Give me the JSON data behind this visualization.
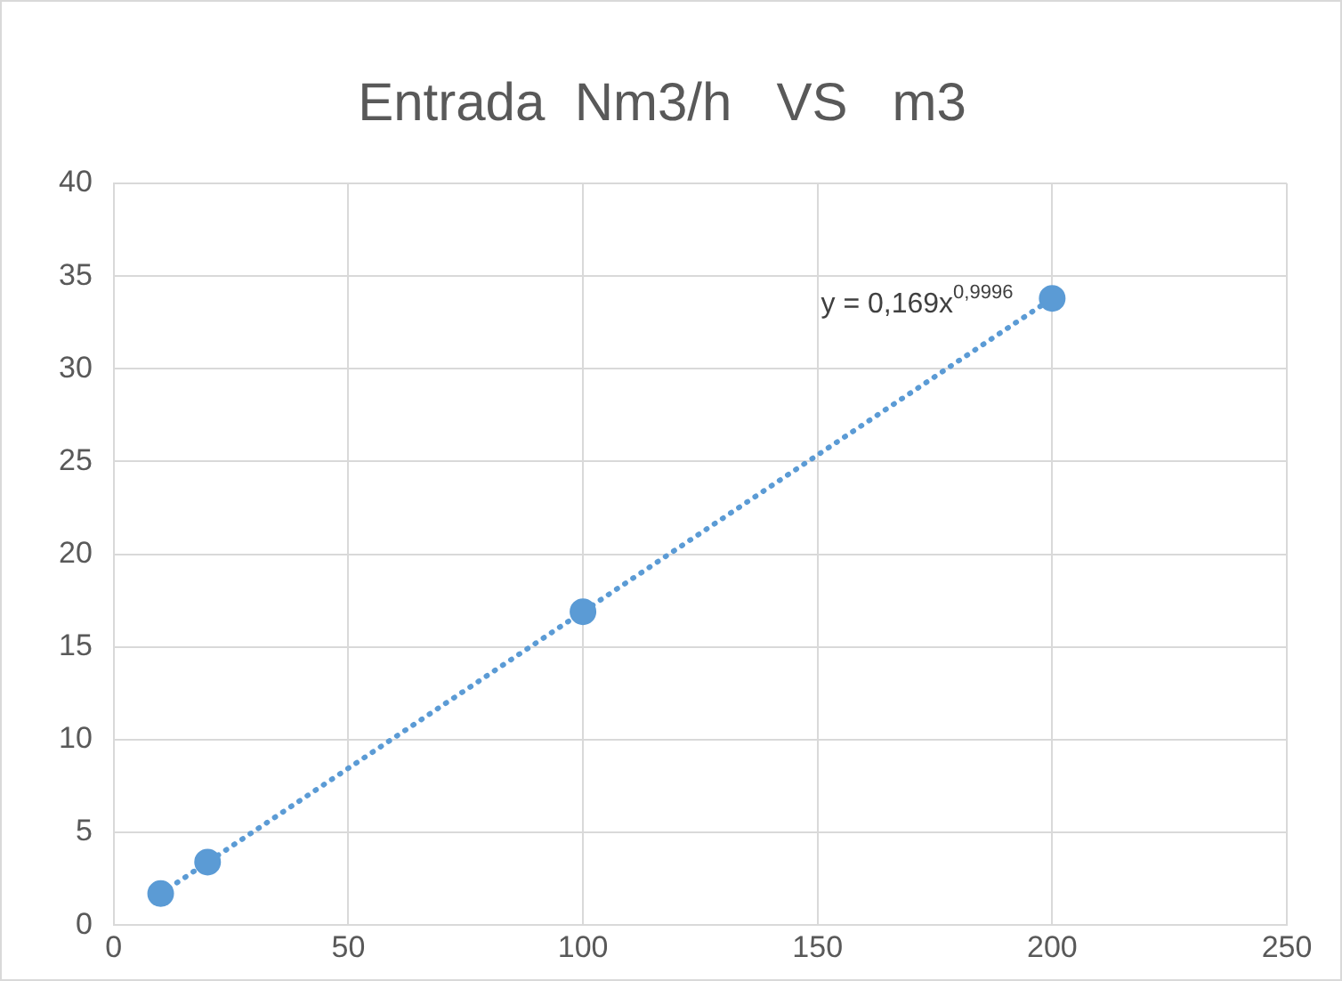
{
  "chart_data": {
    "type": "scatter",
    "title": "Entrada  Nm3/h   VS   m3",
    "x": [
      10,
      20,
      100,
      200
    ],
    "series": [
      {
        "color": "#5b9bd5",
        "values": [
          1.7,
          3.4,
          16.9,
          33.8
        ]
      },
      {
        "type": "line",
        "color": "#5b9bd5",
        "x": [
          10,
          200
        ],
        "values": [
          1.7,
          33.8
        ],
        "line_style": "dotted",
        "marker": "none"
      }
    ],
    "annotations": [
      {
        "text": "y = 0,169x$^{0,9996}$",
        "x": 200,
        "y": 33.8
      }
    ],
    "xlim": [
      0,
      250
    ],
    "xticks": [
      0,
      50,
      100,
      150,
      200,
      250
    ],
    "ylim": [
      0,
      40
    ],
    "yticks": [
      0,
      5,
      10,
      15,
      20,
      25,
      30,
      35,
      40
    ],
    "grid": true,
    "marker": "circle",
    "legend": false
  }
}
